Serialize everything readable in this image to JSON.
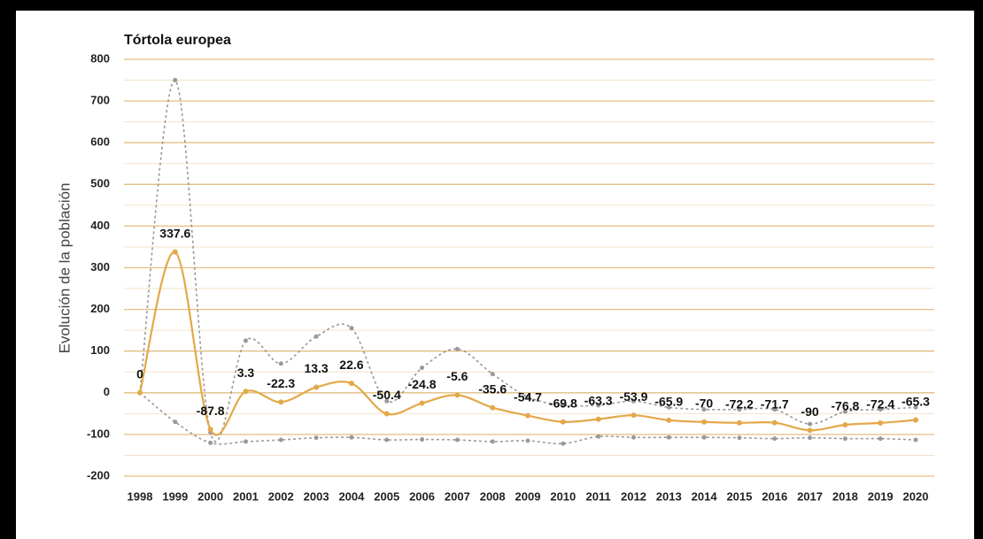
{
  "chart_data": {
    "type": "line",
    "title": "Tórtola europea",
    "y_label": "Evolución de la población",
    "categories": [
      "1998",
      "1999",
      "2000",
      "2001",
      "2002",
      "2003",
      "2004",
      "2005",
      "2006",
      "2007",
      "2008",
      "2009",
      "2010",
      "2011",
      "2012",
      "2013",
      "2014",
      "2015",
      "2016",
      "2017",
      "2018",
      "2019",
      "2020"
    ],
    "series": [
      {
        "color": "#e3a849",
        "style": "solid",
        "data_labels": true,
        "values": [
          0,
          337.6,
          -87.8,
          3.3,
          -22.3,
          13.3,
          22.6,
          -50.4,
          -24.8,
          -5.6,
          -35.6,
          -54.7,
          -69.8,
          -63.3,
          -53.9,
          -65.9,
          -70,
          -72.2,
          -71.7,
          -90,
          -76.8,
          -72.4,
          -65.3
        ]
      },
      {
        "color": "#999999",
        "style": "dotted",
        "data_labels": false,
        "values": [
          0,
          750,
          -95,
          125,
          70,
          135,
          155,
          -20,
          60,
          105,
          45,
          -10,
          -30,
          -30,
          -20,
          -35,
          -40,
          -40,
          -40,
          -75,
          -45,
          -40,
          -35
        ]
      },
      {
        "color": "#999999",
        "style": "dotted",
        "data_labels": false,
        "values": [
          0,
          -70,
          -120,
          -117,
          -113,
          -108,
          -107,
          -113,
          -112,
          -113,
          -117,
          -115,
          -122,
          -105,
          -107,
          -107,
          -107,
          -108,
          -110,
          -108,
          -110,
          -110,
          -113
        ]
      }
    ],
    "ylim": [
      -200,
      800
    ],
    "yticks": [
      -200,
      -100,
      0,
      100,
      200,
      300,
      400,
      500,
      600,
      700,
      800
    ],
    "grid": true,
    "minor_grid": true,
    "smooth": true
  }
}
